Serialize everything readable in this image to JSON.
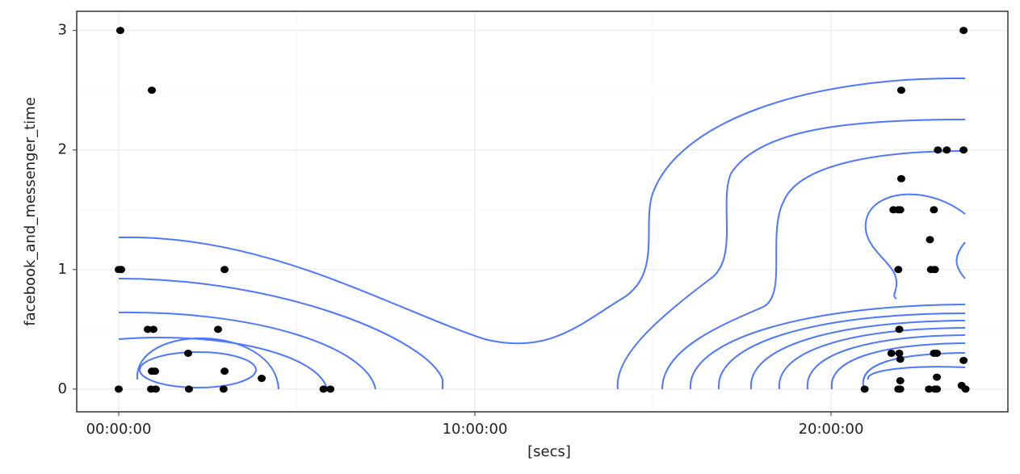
{
  "chart_data": {
    "type": "scatter",
    "x_label": "[secs]",
    "y_label": "facebook_and_messenger_time",
    "x": [
      160,
      3347,
      0,
      250,
      10700,
      2940,
      3510,
      10040,
      7020,
      3670,
      3350,
      10700,
      14450,
      0,
      3270,
      3750,
      7100,
      10600,
      20700,
      21400,
      75400,
      85400,
      79100,
      82800,
      83700,
      85400,
      79100,
      78300,
      78800,
      79000,
      82400,
      82000,
      78800,
      82100,
      82500,
      78900,
      78100,
      78900,
      79000,
      82400,
      82700,
      85400,
      79000,
      82700,
      78800,
      79000,
      81900,
      82500,
      82700,
      85200,
      85600
    ],
    "values": [
      3,
      2.5,
      1,
      1,
      1,
      0.5,
      0.5,
      0.5,
      0.3,
      0.15,
      0.15,
      0.15,
      0.09,
      0,
      0,
      0,
      0,
      0,
      0,
      0,
      0,
      3,
      2.5,
      2,
      2,
      2,
      1.76,
      1.5,
      1.5,
      1.5,
      1.5,
      1.25,
      1,
      1,
      1,
      0.5,
      0.3,
      0.3,
      0.25,
      0.3,
      0.3,
      0.24,
      0.07,
      0.1,
      0,
      0,
      0,
      0,
      0,
      0.03,
      0
    ],
    "color": "#000000",
    "xlim": [
      -4245,
      89878
    ],
    "ylim": [
      -0.19,
      3.16
    ],
    "xticks": [
      {
        "value": 0,
        "label": "00:00:00"
      },
      {
        "value": 36000,
        "label": "10:00:00"
      },
      {
        "value": 72000,
        "label": "20:00:00"
      }
    ],
    "yticks": [
      0,
      1,
      2,
      3
    ],
    "grid": true
  }
}
